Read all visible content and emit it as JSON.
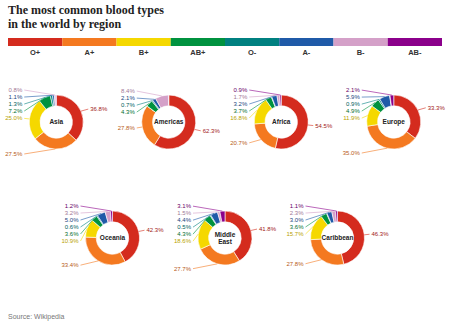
{
  "chart_data": {
    "type": "donut",
    "title": "The most common blood types\nin the world by region",
    "source": "Source: Wikipedia",
    "categories": [
      "O+",
      "A+",
      "B+",
      "AB+",
      "O-",
      "A-",
      "B-",
      "AB-"
    ],
    "colors": [
      "#d42b1e",
      "#f47920",
      "#f5d800",
      "#00923f",
      "#008080",
      "#1f5aa8",
      "#d4a0c8",
      "#8b008b"
    ],
    "data_labels": true,
    "series": [
      {
        "name": "Asia",
        "values": [
          36.8,
          27.5,
          25.0,
          7.2,
          1.3,
          1.1,
          0.8,
          0.3
        ],
        "value_labels": [
          "36.8%",
          "27.5%",
          "25.0%",
          "7.2%",
          "1.3%",
          "1.1%",
          "0.8%",
          null
        ]
      },
      {
        "name": "Americas",
        "values": [
          62.3,
          27.8,
          0.0,
          4.3,
          0.7,
          2.1,
          8.4,
          0.2
        ],
        "value_labels": [
          "62.3%",
          "27.8%",
          null,
          "4.3%",
          "0.7%",
          "2.1%",
          "8.4%",
          null
        ]
      },
      {
        "name": "Africa",
        "values": [
          54.5,
          20.7,
          16.8,
          3.7,
          0.3,
          3.2,
          1.7,
          0.9
        ],
        "value_labels": [
          "54.5%",
          "20.7%",
          "16.8%",
          "3.7%",
          null,
          "3.2%",
          "1.7%",
          "0.9%"
        ]
      },
      {
        "name": "Europe",
        "values": [
          33.3,
          35.0,
          11.9,
          4.9,
          0.9,
          5.9,
          0.2,
          2.1
        ],
        "value_labels": [
          "33.3%",
          "35.0%",
          "11.9%",
          "4.9%",
          "0.9%",
          "5.9%",
          null,
          "2.1%"
        ]
      },
      {
        "name": "Oceania",
        "values": [
          42.3,
          33.4,
          10.9,
          3.6,
          0.6,
          5.0,
          3.2,
          1.2
        ],
        "value_labels": [
          "42.3%",
          "33.4%",
          "10.9%",
          "3.6%",
          "0.6%",
          "5.0%",
          "3.2%",
          "1.2%"
        ]
      },
      {
        "name": "Middle East",
        "values": [
          41.8,
          27.7,
          18.6,
          4.3,
          0.5,
          4.4,
          1.5,
          3.1
        ],
        "value_labels": [
          "41.8%",
          "27.7%",
          "18.6%",
          "4.3%",
          "0.5%",
          "4.4%",
          "1.5%",
          "3.1%"
        ]
      },
      {
        "name": "Caribbean",
        "values": [
          46.3,
          27.8,
          15.7,
          3.6,
          0.3,
          3.0,
          2.3,
          1.1
        ],
        "value_labels": [
          "46.3%",
          "27.8%",
          "15.7%",
          "3.6%",
          null,
          "3.0%",
          "2.3%",
          "1.1%"
        ]
      }
    ]
  }
}
